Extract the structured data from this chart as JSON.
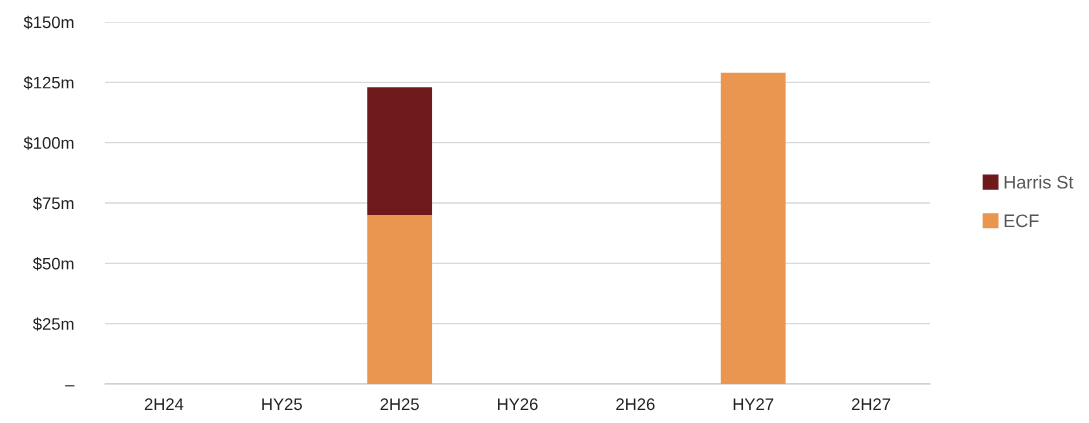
{
  "chart_data": {
    "type": "bar",
    "stacked": true,
    "categories": [
      "2H24",
      "HY25",
      "2H25",
      "HY26",
      "2H26",
      "HY27",
      "2H27"
    ],
    "series": [
      {
        "name": "ECF",
        "color": "#ea9550",
        "values": [
          0,
          0,
          70,
          0,
          0,
          129,
          0
        ]
      },
      {
        "name": "Harris St",
        "color": "#6e1a1b",
        "values": [
          0,
          0,
          53,
          0,
          0,
          0,
          0
        ]
      }
    ],
    "ylim": [
      0,
      150
    ],
    "yticks": [
      {
        "value": 0,
        "label": "–"
      },
      {
        "value": 25,
        "label": "$25m"
      },
      {
        "value": 50,
        "label": "$50m"
      },
      {
        "value": 75,
        "label": "$75m"
      },
      {
        "value": 100,
        "label": "$100m"
      },
      {
        "value": 125,
        "label": "$125m"
      },
      {
        "value": 150,
        "label": "$150m"
      }
    ],
    "grid": "y",
    "legend": "right"
  }
}
